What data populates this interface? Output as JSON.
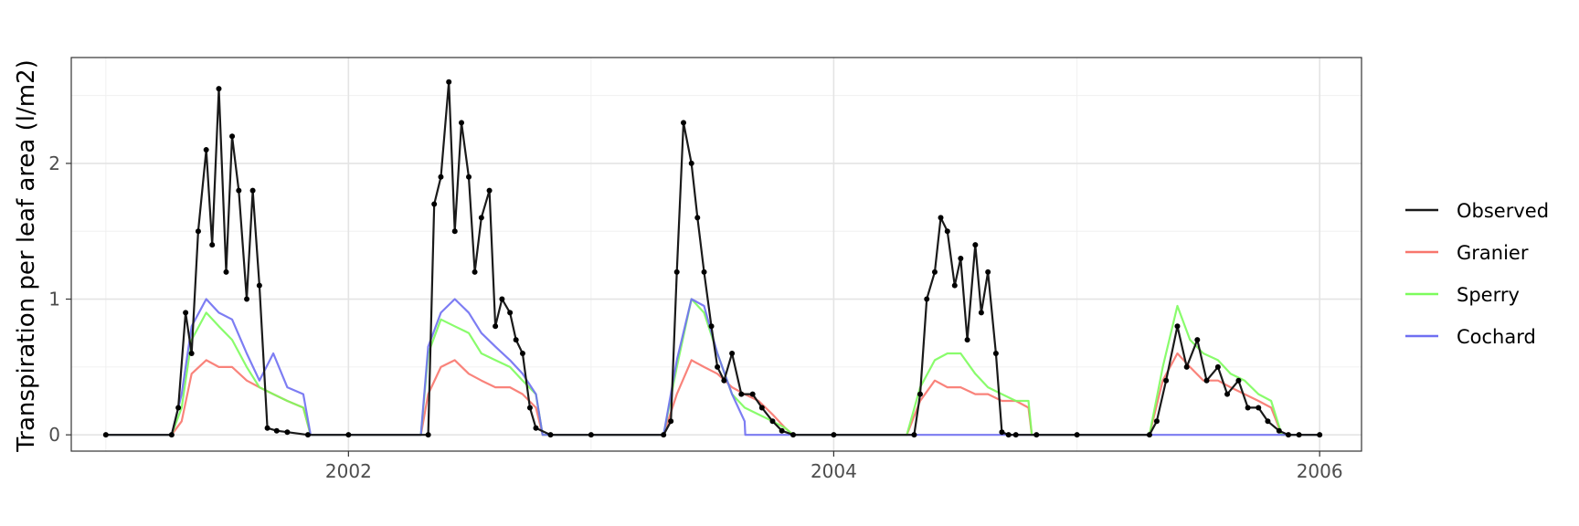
{
  "chart_data": {
    "type": "line",
    "title": "",
    "xlabel": "",
    "ylabel": "Transpiration per leaf area (l/m2)",
    "x_ticks": [
      "2002",
      "2004",
      "2006"
    ],
    "y_ticks": [
      "0",
      "1",
      "2"
    ],
    "xlim": [
      "2000-11-10",
      "2006-03-05"
    ],
    "ylim": [
      -0.12,
      2.78
    ],
    "grid": true,
    "legend_position": "right",
    "series": [
      {
        "name": "Observed",
        "color": "#1a1a1a",
        "points": true,
        "x": [
          "2001-01-01",
          "2001-04-10",
          "2001-04-20",
          "2001-05-01",
          "2001-05-10",
          "2001-05-20",
          "2001-06-01",
          "2001-06-10",
          "2001-06-20",
          "2001-07-01",
          "2001-07-10",
          "2001-07-20",
          "2001-08-01",
          "2001-08-10",
          "2001-08-20",
          "2001-09-01",
          "2001-09-15",
          "2001-10-01",
          "2001-11-01",
          "2002-01-01",
          "2002-05-01",
          "2002-05-10",
          "2002-05-20",
          "2002-06-01",
          "2002-06-10",
          "2002-06-20",
          "2002-07-01",
          "2002-07-10",
          "2002-07-20",
          "2002-08-01",
          "2002-08-10",
          "2002-08-20",
          "2002-09-01",
          "2002-09-10",
          "2002-09-20",
          "2002-10-01",
          "2002-10-10",
          "2002-11-01",
          "2003-01-01",
          "2003-04-20",
          "2003-05-01",
          "2003-05-10",
          "2003-05-20",
          "2003-06-01",
          "2003-06-10",
          "2003-06-20",
          "2003-07-01",
          "2003-07-10",
          "2003-07-20",
          "2003-08-01",
          "2003-08-15",
          "2003-09-01",
          "2003-09-15",
          "2003-10-01",
          "2003-10-15",
          "2003-11-01",
          "2004-01-01",
          "2004-05-01",
          "2004-05-10",
          "2004-05-20",
          "2004-06-01",
          "2004-06-10",
          "2004-06-20",
          "2004-07-01",
          "2004-07-10",
          "2004-07-20",
          "2004-08-01",
          "2004-08-10",
          "2004-08-20",
          "2004-09-01",
          "2004-09-10",
          "2004-09-20",
          "2004-10-01",
          "2004-11-01",
          "2005-01-01",
          "2005-04-20",
          "2005-05-01",
          "2005-05-15",
          "2005-06-01",
          "2005-06-15",
          "2005-07-01",
          "2005-07-15",
          "2005-08-01",
          "2005-08-15",
          "2005-09-01",
          "2005-09-15",
          "2005-10-01",
          "2005-10-15",
          "2005-11-01",
          "2005-11-15",
          "2005-12-01",
          "2006-01-01"
        ],
        "y": [
          0,
          0,
          0.2,
          0.9,
          0.6,
          1.5,
          2.1,
          1.4,
          2.55,
          1.2,
          2.2,
          1.8,
          1.0,
          1.8,
          1.1,
          0.05,
          0.03,
          0.02,
          0,
          0,
          0,
          1.7,
          1.9,
          2.6,
          1.5,
          2.3,
          1.9,
          1.2,
          1.6,
          1.8,
          0.8,
          1.0,
          0.9,
          0.7,
          0.6,
          0.2,
          0.05,
          0,
          0,
          0,
          0.1,
          1.2,
          2.3,
          2.0,
          1.6,
          1.2,
          0.8,
          0.5,
          0.4,
          0.6,
          0.3,
          0.3,
          0.2,
          0.1,
          0.03,
          0,
          0,
          0,
          0.3,
          1.0,
          1.2,
          1.6,
          1.5,
          1.1,
          1.3,
          0.7,
          1.4,
          0.9,
          1.2,
          0.6,
          0.02,
          0,
          0,
          0,
          0,
          0,
          0.1,
          0.4,
          0.8,
          0.5,
          0.7,
          0.4,
          0.5,
          0.3,
          0.4,
          0.2,
          0.2,
          0.1,
          0.03,
          0,
          0,
          0
        ]
      },
      {
        "name": "Granier",
        "color": "#f8766d",
        "points": false,
        "x": [
          "2001-01-01",
          "2001-04-10",
          "2001-04-25",
          "2001-05-10",
          "2001-06-01",
          "2001-06-20",
          "2001-07-10",
          "2001-08-01",
          "2001-08-20",
          "2001-09-10",
          "2001-10-01",
          "2001-10-25",
          "2001-11-05",
          "2002-01-01",
          "2002-04-20",
          "2002-05-01",
          "2002-05-20",
          "2002-06-10",
          "2002-07-01",
          "2002-07-20",
          "2002-08-10",
          "2002-09-01",
          "2002-09-20",
          "2002-10-10",
          "2002-10-20",
          "2003-01-01",
          "2003-04-20",
          "2003-05-10",
          "2003-06-01",
          "2003-06-20",
          "2003-07-10",
          "2003-08-01",
          "2003-08-20",
          "2003-09-10",
          "2003-10-01",
          "2003-10-20",
          "2003-11-01",
          "2004-01-01",
          "2004-04-20",
          "2004-05-10",
          "2004-06-01",
          "2004-06-20",
          "2004-07-10",
          "2004-08-01",
          "2004-08-20",
          "2004-09-10",
          "2004-10-01",
          "2004-10-20",
          "2004-10-25",
          "2005-01-01",
          "2005-04-20",
          "2005-05-10",
          "2005-06-01",
          "2005-06-20",
          "2005-07-10",
          "2005-08-01",
          "2005-08-20",
          "2005-09-10",
          "2005-10-01",
          "2005-10-20",
          "2005-11-05",
          "2006-01-01"
        ],
        "y": [
          0,
          0,
          0.1,
          0.45,
          0.55,
          0.5,
          0.5,
          0.4,
          0.35,
          0.3,
          0.25,
          0.2,
          0,
          0,
          0,
          0.3,
          0.5,
          0.55,
          0.45,
          0.4,
          0.35,
          0.35,
          0.3,
          0.2,
          0,
          0,
          0,
          0.3,
          0.55,
          0.5,
          0.45,
          0.35,
          0.3,
          0.25,
          0.15,
          0.05,
          0,
          0,
          0,
          0.25,
          0.4,
          0.35,
          0.35,
          0.3,
          0.3,
          0.25,
          0.25,
          0.2,
          0,
          0,
          0,
          0.4,
          0.6,
          0.5,
          0.4,
          0.4,
          0.35,
          0.3,
          0.25,
          0.2,
          0,
          0
        ]
      },
      {
        "name": "Sperry",
        "color": "#7cfc5c",
        "points": false,
        "x": [
          "2001-01-01",
          "2001-04-10",
          "2001-04-25",
          "2001-05-10",
          "2001-06-01",
          "2001-06-20",
          "2001-07-10",
          "2001-08-01",
          "2001-08-20",
          "2001-09-10",
          "2001-10-01",
          "2001-10-25",
          "2001-11-05",
          "2002-01-01",
          "2002-04-20",
          "2002-05-01",
          "2002-05-20",
          "2002-06-10",
          "2002-07-01",
          "2002-07-20",
          "2002-08-10",
          "2002-09-01",
          "2002-09-20",
          "2002-10-10",
          "2002-10-20",
          "2003-01-01",
          "2003-04-20",
          "2003-05-10",
          "2003-06-01",
          "2003-06-20",
          "2003-07-10",
          "2003-08-01",
          "2003-08-20",
          "2003-09-10",
          "2003-10-01",
          "2003-10-20",
          "2003-11-01",
          "2004-01-01",
          "2004-04-20",
          "2004-05-10",
          "2004-06-01",
          "2004-06-20",
          "2004-07-10",
          "2004-08-01",
          "2004-08-20",
          "2004-09-10",
          "2004-10-01",
          "2004-10-20",
          "2004-10-25",
          "2005-01-01",
          "2005-04-20",
          "2005-05-10",
          "2005-06-01",
          "2005-06-20",
          "2005-07-10",
          "2005-08-01",
          "2005-08-20",
          "2005-09-10",
          "2005-10-01",
          "2005-10-20",
          "2005-11-05",
          "2006-01-01"
        ],
        "y": [
          0,
          0,
          0.2,
          0.7,
          0.9,
          0.8,
          0.7,
          0.5,
          0.35,
          0.3,
          0.25,
          0.2,
          0,
          0,
          0,
          0.6,
          0.85,
          0.8,
          0.75,
          0.6,
          0.55,
          0.5,
          0.4,
          0.3,
          0,
          0,
          0,
          0.5,
          1.0,
          0.9,
          0.6,
          0.3,
          0.2,
          0.15,
          0.1,
          0.05,
          0,
          0,
          0,
          0.35,
          0.55,
          0.6,
          0.6,
          0.45,
          0.35,
          0.3,
          0.25,
          0.25,
          0,
          0,
          0,
          0.5,
          0.95,
          0.7,
          0.6,
          0.55,
          0.45,
          0.4,
          0.3,
          0.25,
          0,
          0
        ]
      },
      {
        "name": "Cochard",
        "color": "#6f6ff2",
        "points": false,
        "x": [
          "2001-01-01",
          "2001-04-10",
          "2001-04-25",
          "2001-05-10",
          "2001-06-01",
          "2001-06-20",
          "2001-07-10",
          "2001-08-01",
          "2001-08-20",
          "2001-09-10",
          "2001-10-01",
          "2001-10-25",
          "2001-11-05",
          "2002-01-01",
          "2002-04-20",
          "2002-05-01",
          "2002-05-20",
          "2002-06-10",
          "2002-07-01",
          "2002-07-20",
          "2002-08-10",
          "2002-09-01",
          "2002-09-20",
          "2002-10-10",
          "2002-10-20",
          "2003-01-01",
          "2003-04-20",
          "2003-05-10",
          "2003-06-01",
          "2003-06-20",
          "2003-07-10",
          "2003-08-01",
          "2003-08-20",
          "2003-08-21",
          "2004-01-01",
          "2006-01-01"
        ],
        "y": [
          0,
          0,
          0.3,
          0.8,
          1.0,
          0.9,
          0.85,
          0.6,
          0.4,
          0.6,
          0.35,
          0.3,
          0,
          0,
          0,
          0.65,
          0.9,
          1.0,
          0.9,
          0.75,
          0.65,
          0.55,
          0.45,
          0.3,
          0,
          0,
          0,
          0.55,
          1.0,
          0.95,
          0.6,
          0.3,
          0.1,
          0,
          0,
          0
        ]
      }
    ]
  }
}
